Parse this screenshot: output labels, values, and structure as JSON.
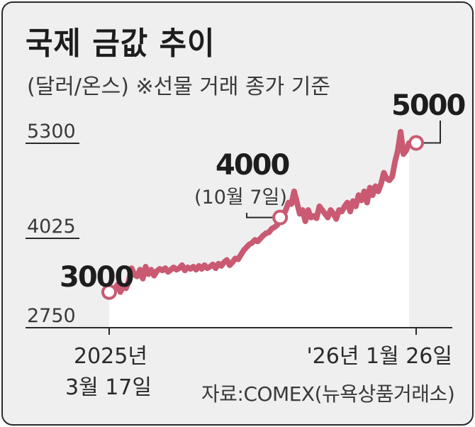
{
  "title": "국제 금값 추이",
  "subtitle": "(달러/온스) ※선물 거래 종가 기준",
  "source": "자료:COMEX(뉴욕상품거래소)",
  "colors": {
    "line": "#c95a72",
    "area": "#ffffff",
    "background": "#efefef"
  },
  "chart_data": {
    "type": "area",
    "ylim": [
      2750,
      5300
    ],
    "yticks": [
      "5300",
      "4025",
      "2750"
    ],
    "x": [
      0,
      3,
      6,
      9,
      12,
      15,
      18,
      21,
      24,
      27,
      30,
      33,
      36,
      39,
      42,
      45,
      48,
      51,
      54,
      57,
      60,
      63,
      66,
      69,
      72,
      75,
      78,
      81,
      84,
      87,
      90,
      93,
      96,
      99,
      102,
      105,
      108,
      111,
      114,
      117,
      120,
      123,
      126,
      129,
      132,
      135,
      138,
      141,
      144,
      147,
      150,
      153,
      156,
      159,
      162,
      165,
      168,
      171,
      174,
      177,
      180,
      183,
      186,
      189,
      192,
      195,
      198,
      201,
      204,
      207,
      210,
      213,
      216,
      219,
      222,
      225,
      228,
      231,
      234,
      237,
      240,
      243,
      246,
      249,
      252,
      255,
      258,
      261,
      264,
      267,
      270,
      273,
      276,
      279,
      282,
      285,
      288,
      291,
      294,
      297,
      300,
      303,
      306,
      309,
      312,
      315,
      318,
      321
    ],
    "values": [
      3000,
      2980,
      3040,
      3100,
      3000,
      3080,
      3050,
      3150,
      3320,
      3230,
      3210,
      3300,
      3180,
      3340,
      3240,
      3300,
      3220,
      3280,
      3310,
      3290,
      3320,
      3270,
      3300,
      3330,
      3300,
      3320,
      3360,
      3290,
      3330,
      3310,
      3340,
      3300,
      3350,
      3310,
      3360,
      3320,
      3340,
      3370,
      3320,
      3380,
      3350,
      3400,
      3430,
      3360,
      3400,
      3450,
      3440,
      3500,
      3560,
      3600,
      3640,
      3660,
      3700,
      3680,
      3720,
      3760,
      3790,
      3800,
      3850,
      3870,
      3900,
      4000,
      4020,
      4100,
      4200,
      4180,
      4350,
      4200,
      4050,
      4100,
      3950,
      4100,
      4000,
      4020,
      3990,
      4150,
      4100,
      4050,
      4000,
      4100,
      4050,
      3980,
      4100,
      4080,
      4150,
      4200,
      4080,
      4220,
      4150,
      4300,
      4230,
      4350,
      4200,
      4400,
      4300,
      4420,
      4350,
      4450,
      4600,
      4520,
      4500,
      4550,
      4750,
      4900,
      5150,
      4850,
      4900,
      5000
    ],
    "x_labels": {
      "start": [
        "2025년",
        "3월 17일"
      ],
      "end": "'26년 1월 26일"
    },
    "annotations": [
      {
        "value": "3000",
        "note": ""
      },
      {
        "value": "4000",
        "note": "(10월 7일)"
      },
      {
        "value": "5000",
        "note": ""
      }
    ]
  }
}
